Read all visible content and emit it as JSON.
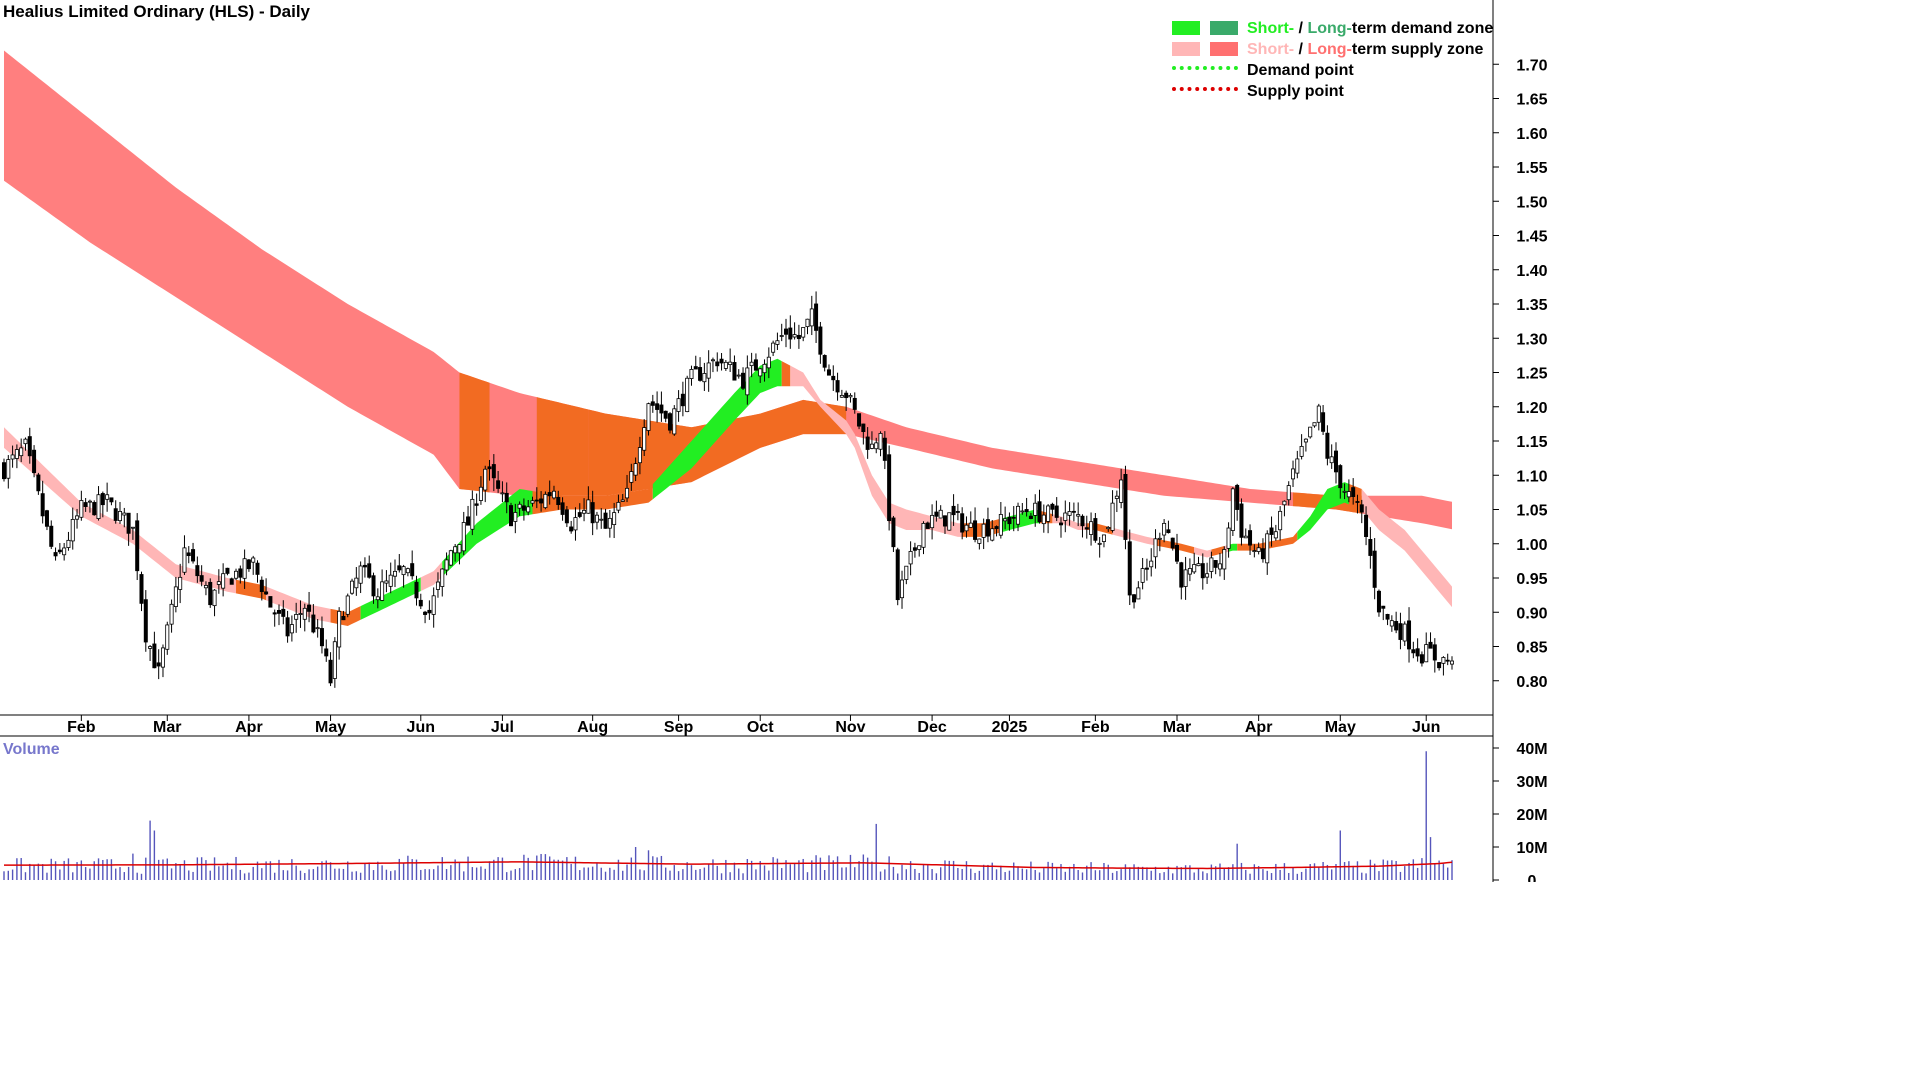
{
  "title": "Healius Limited Ordinary (HLS) - Daily",
  "legend": {
    "demand_zone": {
      "short": "Short-",
      "sep": " / ",
      "long": "Long-",
      "rest": "term demand zone",
      "short_color": "#22ee22",
      "long_color": "#3aaa6a"
    },
    "supply_zone": {
      "short": "Short-",
      "sep": " / ",
      "long": "Long-",
      "rest": "term supply zone",
      "short_color": "#ffb6b6",
      "long_color": "#ff7070"
    },
    "demand_point": {
      "label": "Demand point",
      "color": "#22ee22"
    },
    "supply_point": {
      "label": "Supply point",
      "color": "#dd0000"
    }
  },
  "volume_label": "Volume",
  "chart_data": {
    "type": "candlestick",
    "price_axis": {
      "min": 0.75,
      "max": 1.75,
      "ticks": [
        "1.70",
        "1.65",
        "1.60",
        "1.55",
        "1.50",
        "1.45",
        "1.40",
        "1.35",
        "1.30",
        "1.25",
        "1.20",
        "1.15",
        "1.10",
        "1.05",
        "1.00",
        "0.95",
        "0.90",
        "0.85",
        "0.80"
      ]
    },
    "x_axis": {
      "labels": [
        "Feb",
        "Mar",
        "Apr",
        "May",
        "Jun",
        "Jul",
        "Aug",
        "Sep",
        "Oct",
        "Nov",
        "Dec",
        "2025",
        "Feb",
        "Mar",
        "Apr",
        "May",
        "Jun"
      ],
      "label_index": [
        18,
        38,
        57,
        76,
        97,
        116,
        137,
        157,
        176,
        197,
        216,
        234,
        254,
        273,
        292,
        311,
        331
      ],
      "bars": 338
    },
    "price_anchors": {
      "index": [
        0,
        5,
        12,
        18,
        24,
        30,
        33,
        36,
        42,
        48,
        52,
        58,
        62,
        66,
        70,
        74,
        76,
        78,
        83,
        87,
        93,
        99,
        104,
        108,
        112,
        118,
        124,
        128,
        132,
        136,
        140,
        145,
        150,
        155,
        160,
        166,
        172,
        178,
        182,
        185,
        188,
        192,
        196,
        198,
        200,
        202,
        204,
        208,
        214,
        220,
        226,
        232,
        238,
        244,
        250,
        256,
        260,
        262,
        266,
        270,
        274,
        280,
        284,
        286,
        288,
        292,
        296,
        300,
        304,
        306,
        308,
        312,
        314,
        316,
        318,
        320,
        322,
        324,
        326,
        328,
        330,
        332,
        334,
        336,
        338
      ],
      "close": [
        1.11,
        1.14,
        0.97,
        1.05,
        1.06,
        1.02,
        0.87,
        0.81,
        0.99,
        0.92,
        0.95,
        0.97,
        0.91,
        0.87,
        0.91,
        0.85,
        0.8,
        0.89,
        0.96,
        0.93,
        0.96,
        0.9,
        0.99,
        1.03,
        1.11,
        1.04,
        1.06,
        1.08,
        1.03,
        1.05,
        1.02,
        1.07,
        1.21,
        1.18,
        1.24,
        1.27,
        1.24,
        1.28,
        1.31,
        1.3,
        1.33,
        1.25,
        1.22,
        1.19,
        1.16,
        1.14,
        1.17,
        0.92,
        1.03,
        1.04,
        1.02,
        1.03,
        1.05,
        1.04,
        1.04,
        1.01,
        1.1,
        0.92,
        0.96,
        1.04,
        0.95,
        0.96,
        0.98,
        1.08,
        1.02,
        0.98,
        1.02,
        1.1,
        1.16,
        1.19,
        1.13,
        1.08,
        1.06,
        1.04,
        0.98,
        0.91,
        0.89,
        0.88,
        0.87,
        0.85,
        0.84,
        0.84,
        0.83,
        0.83,
        0.81
      ]
    },
    "short_zone_anchors": {
      "index": [
        0,
        18,
        30,
        40,
        52,
        60,
        72,
        80,
        90,
        100,
        110,
        120,
        130,
        140,
        150,
        160,
        170,
        176,
        180,
        186,
        190,
        196,
        198,
        202,
        206,
        210,
        216,
        222,
        228,
        234,
        240,
        246,
        250,
        254,
        260,
        266,
        274,
        280,
        286,
        292,
        300,
        304,
        308,
        312,
        316,
        320,
        326,
        330,
        334,
        338
      ],
      "upper": [
        1.17,
        1.06,
        1.02,
        0.97,
        0.95,
        0.94,
        0.91,
        0.9,
        0.93,
        0.96,
        1.03,
        1.08,
        1.07,
        1.07,
        1.08,
        1.15,
        1.22,
        1.26,
        1.27,
        1.25,
        1.21,
        1.18,
        1.16,
        1.1,
        1.06,
        1.05,
        1.04,
        1.03,
        1.03,
        1.04,
        1.05,
        1.04,
        1.03,
        1.03,
        1.02,
        1.01,
        1.0,
        0.99,
        1.0,
        1.0,
        1.01,
        1.04,
        1.08,
        1.09,
        1.08,
        1.05,
        1.02,
        0.99,
        0.96,
        0.93
      ],
      "lower": [
        1.14,
        1.04,
        1.0,
        0.95,
        0.93,
        0.92,
        0.89,
        0.88,
        0.91,
        0.94,
        1.0,
        1.04,
        1.05,
        1.05,
        1.06,
        1.11,
        1.18,
        1.22,
        1.23,
        1.23,
        1.2,
        1.16,
        1.14,
        1.07,
        1.03,
        1.02,
        1.02,
        1.01,
        1.01,
        1.02,
        1.03,
        1.03,
        1.02,
        1.02,
        1.01,
        1.0,
        0.99,
        0.98,
        0.99,
        0.99,
        1.0,
        1.02,
        1.05,
        1.06,
        1.05,
        1.02,
        0.99,
        0.96,
        0.93,
        0.9
      ],
      "colors": {
        "supply": "#ffb6b6",
        "demand": "#22ee22",
        "mixed": "#f26b22"
      }
    },
    "long_zone_anchors": {
      "index": [
        0,
        20,
        40,
        60,
        80,
        100,
        106,
        120,
        140,
        160,
        176,
        186,
        196,
        210,
        230,
        250,
        270,
        290,
        310,
        320,
        330,
        338
      ],
      "upper": [
        1.72,
        1.62,
        1.52,
        1.43,
        1.35,
        1.28,
        1.25,
        1.22,
        1.19,
        1.17,
        1.19,
        1.21,
        1.2,
        1.17,
        1.14,
        1.12,
        1.1,
        1.08,
        1.07,
        1.07,
        1.07,
        1.06
      ],
      "lower": [
        1.53,
        1.44,
        1.36,
        1.28,
        1.2,
        1.13,
        1.08,
        1.07,
        1.07,
        1.09,
        1.14,
        1.16,
        1.16,
        1.14,
        1.11,
        1.09,
        1.07,
        1.06,
        1.05,
        1.04,
        1.03,
        1.02
      ],
      "orange_segments": [
        [
          106,
          113
        ],
        [
          124,
          136
        ],
        [
          136,
          196
        ],
        [
          300,
          316
        ]
      ],
      "colors": {
        "supply": "#ff7f7f",
        "demand": "#3aaa6a",
        "mixed": "#f26b22"
      }
    },
    "volume_axis": {
      "min": 0,
      "max": 40,
      "unit": "M",
      "ticks": [
        "40M",
        "30M",
        "20M",
        "10M",
        "0"
      ]
    },
    "volume_spikes_M": [
      {
        "index": 30,
        "value": 8
      },
      {
        "index": 34,
        "value": 18
      },
      {
        "index": 35,
        "value": 15
      },
      {
        "index": 147,
        "value": 10
      },
      {
        "index": 150,
        "value": 9
      },
      {
        "index": 203,
        "value": 17
      },
      {
        "index": 287,
        "value": 11
      },
      {
        "index": 311,
        "value": 15
      },
      {
        "index": 331,
        "value": 39
      },
      {
        "index": 332,
        "value": 13
      }
    ],
    "volume_average_M": {
      "index": [
        0,
        40,
        80,
        120,
        160,
        200,
        240,
        260,
        280,
        300,
        320,
        334,
        338
      ],
      "value": [
        4.5,
        4.6,
        5.0,
        5.5,
        4.8,
        5.2,
        3.8,
        3.6,
        3.5,
        3.8,
        4.2,
        5.0,
        5.5
      ]
    },
    "grid": false
  }
}
